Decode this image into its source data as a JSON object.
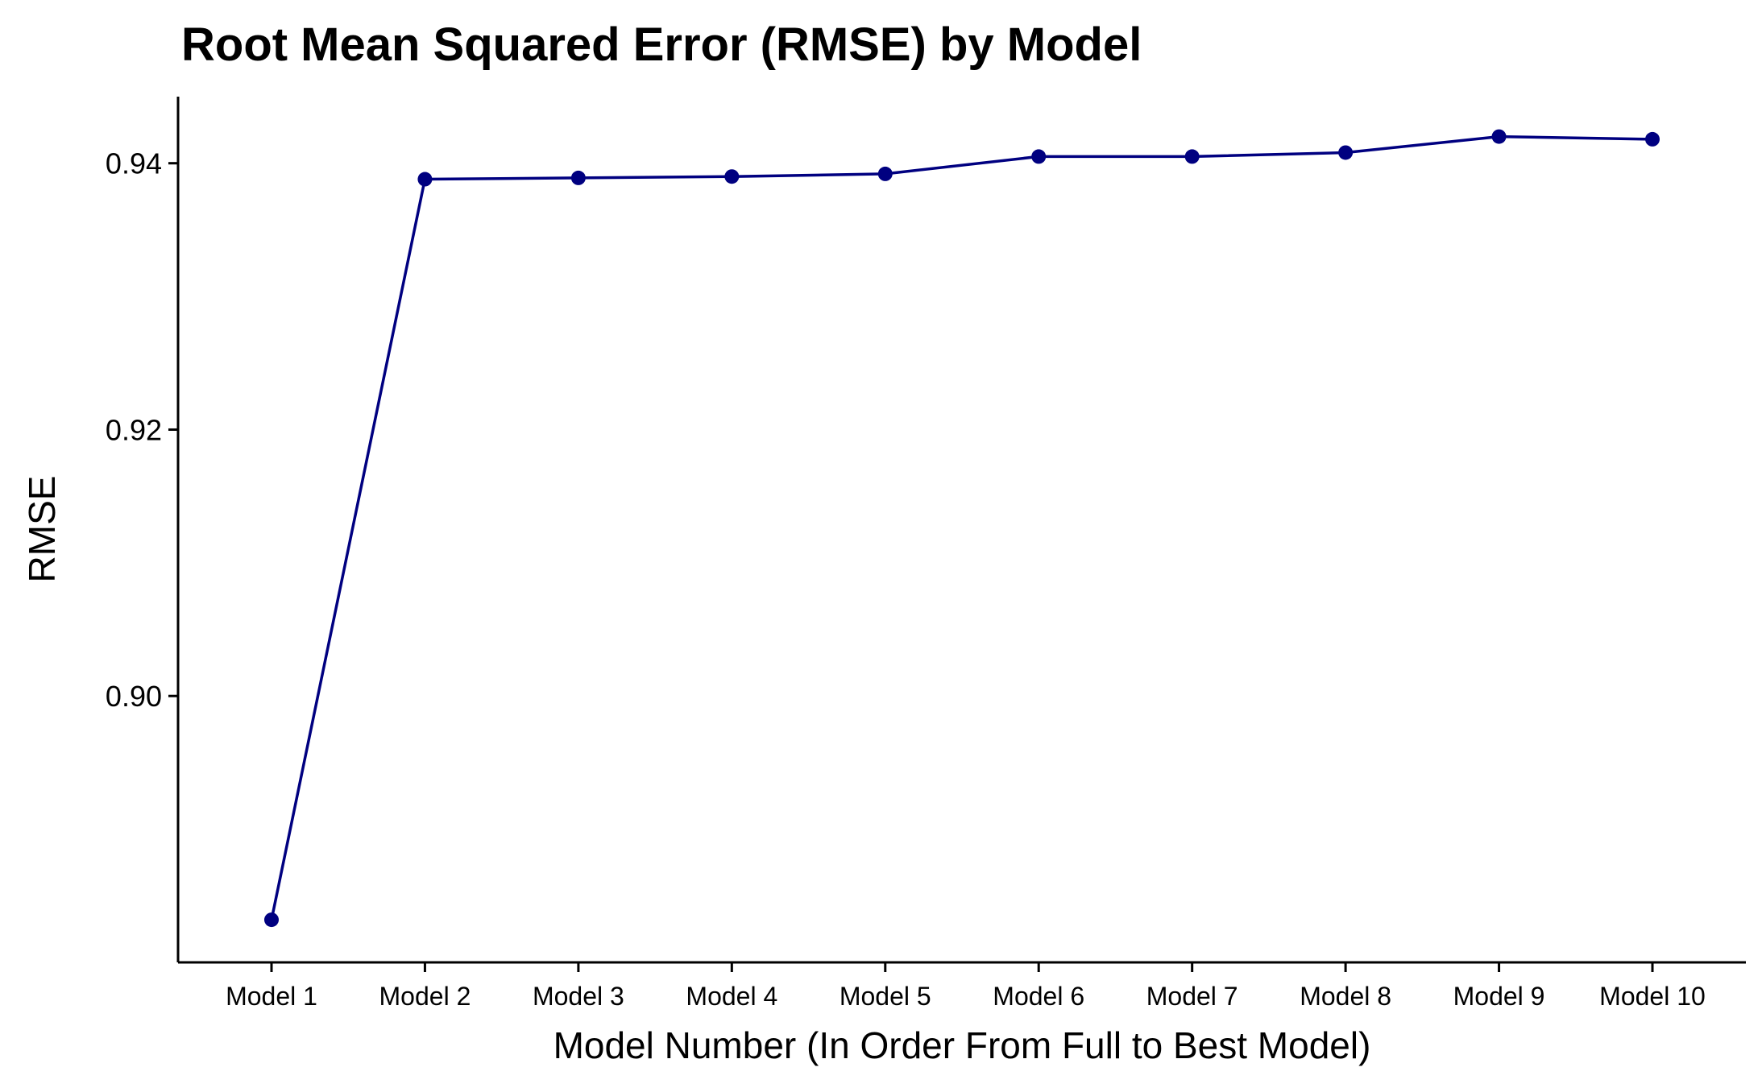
{
  "chart_data": {
    "type": "line",
    "title": "Root Mean Squared Error (RMSE) by Model",
    "xlabel": "Model Number (In Order From Full to Best Model)",
    "ylabel": "RMSE",
    "categories": [
      "Model 1",
      "Model 2",
      "Model 3",
      "Model 4",
      "Model 5",
      "Model 6",
      "Model 7",
      "Model 8",
      "Model 9",
      "Model 10"
    ],
    "series": [
      {
        "values": [
          0.8832,
          0.9388,
          0.9389,
          0.939,
          0.9392,
          0.9405,
          0.9405,
          0.9408,
          0.942,
          0.9418
        ]
      }
    ],
    "ylim": [
      0.88,
      0.945
    ],
    "yticks": [
      0.9,
      0.92,
      0.94
    ],
    "ytick_labels": [
      "0.90",
      "0.92",
      "0.94"
    ],
    "grid": false,
    "legend": "none",
    "line_color": "#000080",
    "point_color": "#000080"
  }
}
